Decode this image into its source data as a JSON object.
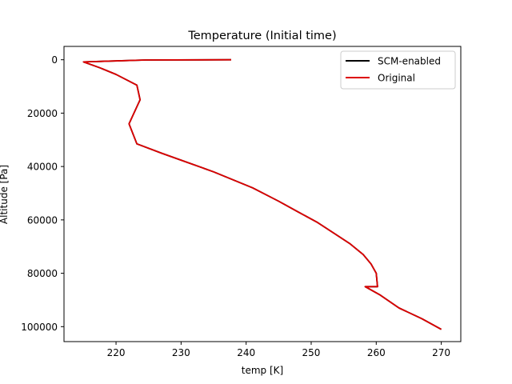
{
  "chart_data": {
    "type": "line",
    "title": "Temperature (Initial time)",
    "xlabel": "temp [K]",
    "ylabel": "Altitude [Pa]",
    "xlim": [
      212,
      273
    ],
    "ylim": [
      105600,
      -5000
    ],
    "y_inverted": true,
    "x_ticks": [
      220,
      230,
      240,
      250,
      260,
      270
    ],
    "y_ticks": [
      0,
      20000,
      40000,
      60000,
      80000,
      100000
    ],
    "grid": false,
    "legend_position": "top-right",
    "series": [
      {
        "name": "SCM-enabled",
        "color": "#000000",
        "points": [
          [
            237.7,
            0
          ],
          [
            224.5,
            100
          ],
          [
            215.0,
            800
          ],
          [
            217.5,
            3000
          ],
          [
            220.0,
            5500
          ],
          [
            223.2,
            9500
          ],
          [
            223.7,
            15000
          ],
          [
            222.0,
            24000
          ],
          [
            223.2,
            31500
          ],
          [
            227.0,
            35000
          ],
          [
            231.0,
            38500
          ],
          [
            235.0,
            42000
          ],
          [
            238.0,
            45000
          ],
          [
            241.0,
            48000
          ],
          [
            245.0,
            53000
          ],
          [
            248.0,
            57000
          ],
          [
            251.0,
            61000
          ],
          [
            253.5,
            65000
          ],
          [
            256.0,
            69000
          ],
          [
            258.0,
            73000
          ],
          [
            259.2,
            76500
          ],
          [
            260.0,
            80000
          ],
          [
            260.2,
            85000
          ],
          [
            258.3,
            85000
          ],
          [
            260.5,
            88000
          ],
          [
            263.5,
            93000
          ],
          [
            267.0,
            97000
          ],
          [
            270.0,
            101000
          ]
        ]
      },
      {
        "name": "Original",
        "color": "#dd0000",
        "points": [
          [
            237.7,
            0
          ],
          [
            224.5,
            100
          ],
          [
            215.0,
            800
          ],
          [
            217.5,
            3000
          ],
          [
            220.0,
            5500
          ],
          [
            223.2,
            9500
          ],
          [
            223.7,
            15000
          ],
          [
            222.0,
            24000
          ],
          [
            223.2,
            31500
          ],
          [
            227.0,
            35000
          ],
          [
            231.0,
            38500
          ],
          [
            235.0,
            42000
          ],
          [
            238.0,
            45000
          ],
          [
            241.0,
            48000
          ],
          [
            245.0,
            53000
          ],
          [
            248.0,
            57000
          ],
          [
            251.0,
            61000
          ],
          [
            253.5,
            65000
          ],
          [
            256.0,
            69000
          ],
          [
            258.0,
            73000
          ],
          [
            259.2,
            76500
          ],
          [
            260.0,
            80000
          ],
          [
            260.2,
            85000
          ],
          [
            258.3,
            85000
          ],
          [
            260.5,
            88000
          ],
          [
            263.5,
            93000
          ],
          [
            267.0,
            97000
          ],
          [
            270.0,
            101000
          ]
        ]
      }
    ]
  }
}
